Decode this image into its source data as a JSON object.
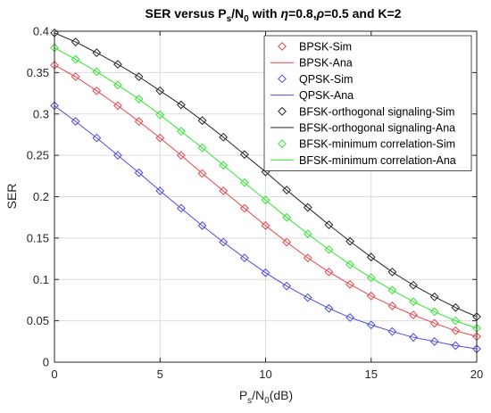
{
  "chart_data": {
    "type": "line",
    "title": {
      "pre": "SER versus P",
      "sub1": "s",
      "mid1": "/N",
      "sub2": "0",
      "mid2": " with ",
      "eta": "η",
      "mid3": "=0.8,",
      "rho": "ρ",
      "post": "=0.5 and K=2"
    },
    "xlabel": {
      "pre": "P",
      "sub1": "s",
      "mid": "/N",
      "sub2": "0",
      "post": "(dB)"
    },
    "ylabel": "SER",
    "xlim": [
      0,
      20
    ],
    "ylim": [
      0,
      0.4
    ],
    "xticks": [
      "0",
      "5",
      "10",
      "15",
      "20"
    ],
    "yticks": [
      "0",
      "0.05",
      "0.1",
      "0.15",
      "0.2",
      "0.25",
      "0.3",
      "0.35",
      "0.4"
    ],
    "grid": true,
    "legend_position": "top-right",
    "x": [
      0,
      1,
      2,
      3,
      4,
      5,
      6,
      7,
      8,
      9,
      10,
      11,
      12,
      13,
      14,
      15,
      16,
      17,
      18,
      19,
      20
    ],
    "series": [
      {
        "name": "BPSK-Sim",
        "color": "#e8434a",
        "marker": "diamond",
        "line": false,
        "values": [
          0.359,
          0.345,
          0.328,
          0.31,
          0.291,
          0.271,
          0.25,
          0.228,
          0.207,
          0.186,
          0.165,
          0.145,
          0.126,
          0.109,
          0.094,
          0.08,
          0.068,
          0.057,
          0.047,
          0.038,
          0.031
        ]
      },
      {
        "name": "BPSK-Ana",
        "color": "#e8434a",
        "marker": "none",
        "line": true,
        "values": [
          0.359,
          0.345,
          0.328,
          0.31,
          0.291,
          0.271,
          0.25,
          0.228,
          0.207,
          0.186,
          0.165,
          0.145,
          0.126,
          0.109,
          0.094,
          0.08,
          0.068,
          0.057,
          0.047,
          0.038,
          0.031
        ]
      },
      {
        "name": "QPSK-Sim",
        "color": "#4a4ae0",
        "marker": "diamond",
        "line": false,
        "values": [
          0.31,
          0.291,
          0.271,
          0.25,
          0.229,
          0.207,
          0.186,
          0.165,
          0.145,
          0.126,
          0.108,
          0.092,
          0.078,
          0.065,
          0.054,
          0.045,
          0.037,
          0.03,
          0.025,
          0.02,
          0.016
        ]
      },
      {
        "name": "QPSK-Ana",
        "color": "#4a4ae0",
        "marker": "none",
        "line": true,
        "values": [
          0.31,
          0.291,
          0.271,
          0.25,
          0.229,
          0.207,
          0.186,
          0.165,
          0.145,
          0.126,
          0.108,
          0.092,
          0.078,
          0.065,
          0.054,
          0.045,
          0.037,
          0.03,
          0.025,
          0.02,
          0.016
        ]
      },
      {
        "name": "BFSK-orthogonal signaling-Sim",
        "color": "#262626",
        "marker": "diamond",
        "line": false,
        "values": [
          0.398,
          0.387,
          0.374,
          0.36,
          0.345,
          0.328,
          0.311,
          0.292,
          0.272,
          0.251,
          0.23,
          0.208,
          0.187,
          0.166,
          0.146,
          0.127,
          0.109,
          0.093,
          0.079,
          0.066,
          0.055
        ]
      },
      {
        "name": "BFSK-orthogonal signaling-Ana",
        "color": "#262626",
        "marker": "none",
        "line": true,
        "values": [
          0.398,
          0.387,
          0.374,
          0.36,
          0.345,
          0.328,
          0.311,
          0.292,
          0.272,
          0.251,
          0.23,
          0.208,
          0.187,
          0.166,
          0.146,
          0.127,
          0.109,
          0.093,
          0.079,
          0.066,
          0.055
        ]
      },
      {
        "name": "BFSK-minimum correlation-Sim",
        "color": "#2ee82e",
        "marker": "diamond",
        "line": false,
        "values": [
          0.38,
          0.366,
          0.351,
          0.335,
          0.318,
          0.299,
          0.279,
          0.259,
          0.238,
          0.217,
          0.196,
          0.175,
          0.155,
          0.136,
          0.118,
          0.102,
          0.087,
          0.073,
          0.061,
          0.05,
          0.041
        ]
      },
      {
        "name": "BFSK-minimum correlation-Ana",
        "color": "#2ee82e",
        "marker": "none",
        "line": true,
        "values": [
          0.38,
          0.366,
          0.351,
          0.335,
          0.318,
          0.299,
          0.279,
          0.259,
          0.238,
          0.217,
          0.196,
          0.175,
          0.155,
          0.136,
          0.118,
          0.102,
          0.087,
          0.073,
          0.061,
          0.05,
          0.041
        ]
      }
    ]
  }
}
